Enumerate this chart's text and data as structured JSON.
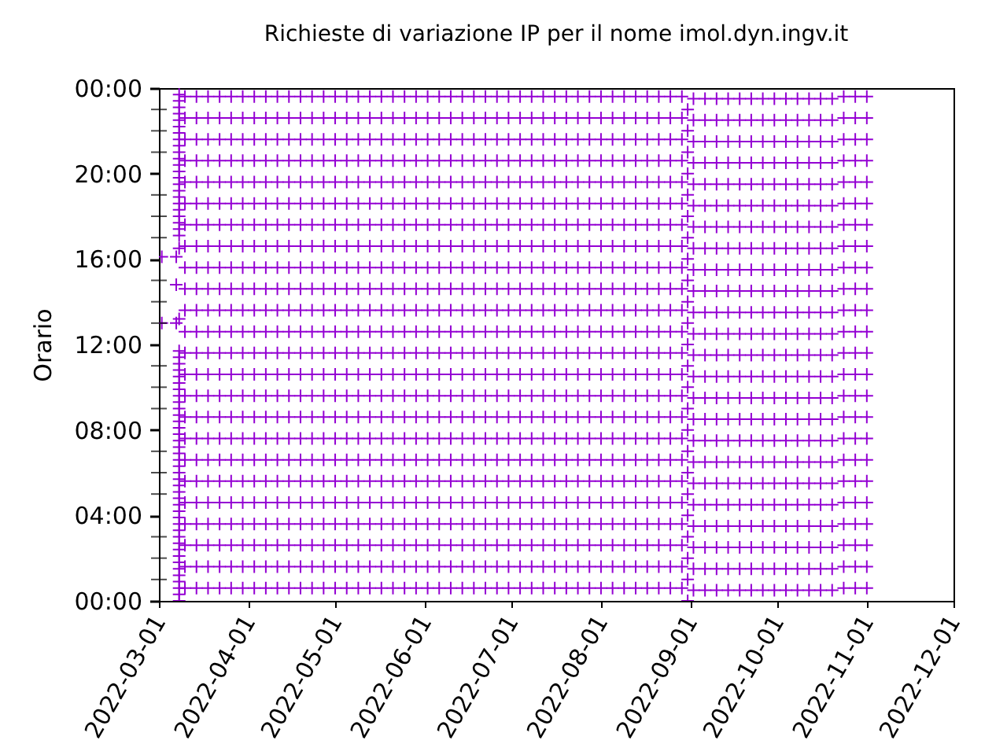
{
  "chart_data": {
    "type": "scatter",
    "title": "Richieste di variazione IP per il nome imol.dyn.ingv.it",
    "ylabel": "Orario",
    "marker": "cross",
    "xlim": [
      "2022-03-01",
      "2022-12-01"
    ],
    "xticks": [
      "2022-03-01",
      "2022-04-01",
      "2022-05-01",
      "2022-06-01",
      "2022-07-01",
      "2022-08-01",
      "2022-09-01",
      "2022-10-01",
      "2022-11-01",
      "2022-12-01"
    ],
    "ylim": [
      0,
      24
    ],
    "yticks": [
      {
        "value": 0,
        "label": "00:00"
      },
      {
        "value": 1,
        "label": null
      },
      {
        "value": 2,
        "label": null
      },
      {
        "value": 3,
        "label": null
      },
      {
        "value": 4,
        "label": "04:00"
      },
      {
        "value": 5,
        "label": null
      },
      {
        "value": 6,
        "label": null
      },
      {
        "value": 7,
        "label": null
      },
      {
        "value": 8,
        "label": "08:00"
      },
      {
        "value": 9,
        "label": null
      },
      {
        "value": 10,
        "label": null
      },
      {
        "value": 11,
        "label": null
      },
      {
        "value": 12,
        "label": "12:00"
      },
      {
        "value": 13,
        "label": null
      },
      {
        "value": 14,
        "label": null
      },
      {
        "value": 15,
        "label": null
      },
      {
        "value": 16,
        "label": "16:00"
      },
      {
        "value": 17,
        "label": null
      },
      {
        "value": 18,
        "label": null
      },
      {
        "value": 19,
        "label": null
      },
      {
        "value": 20,
        "label": "20:00"
      },
      {
        "value": 21,
        "label": null
      },
      {
        "value": 22,
        "label": null
      },
      {
        "value": 23,
        "label": null
      },
      {
        "value": 24,
        "label": "00:00"
      }
    ],
    "x": [
      "2022-03-10",
      "2022-03-14",
      "2022-03-18",
      "2022-03-22",
      "2022-03-26",
      "2022-03-30",
      "2022-04-03",
      "2022-04-07",
      "2022-04-11",
      "2022-04-15",
      "2022-04-19",
      "2022-04-23",
      "2022-04-27",
      "2022-05-01",
      "2022-05-05",
      "2022-05-09",
      "2022-05-13",
      "2022-05-17",
      "2022-05-21",
      "2022-05-25",
      "2022-05-29",
      "2022-06-02",
      "2022-06-06",
      "2022-06-10",
      "2022-06-14",
      "2022-06-18",
      "2022-06-22",
      "2022-06-26",
      "2022-06-30",
      "2022-07-04",
      "2022-07-08",
      "2022-07-12",
      "2022-07-16",
      "2022-07-20",
      "2022-07-24",
      "2022-07-28",
      "2022-08-01",
      "2022-08-05",
      "2022-08-09",
      "2022-08-13",
      "2022-08-17",
      "2022-08-21",
      "2022-08-25",
      "2022-08-29",
      "2022-09-02",
      "2022-09-06",
      "2022-09-10",
      "2022-09-14",
      "2022-09-18",
      "2022-09-22",
      "2022-09-26",
      "2022-09-30",
      "2022-10-04",
      "2022-10-08",
      "2022-10-12",
      "2022-10-16",
      "2022-10-20",
      "2022-10-24",
      "2022-10-28",
      "2022-11-01"
    ],
    "series": [
      {
        "color": "#9400d3",
        "values": [
          0.6,
          0.6,
          0.6,
          0.6,
          0.6,
          0.6,
          0.6,
          0.6,
          0.6,
          0.6,
          0.6,
          0.6,
          0.6,
          0.6,
          0.6,
          0.6,
          0.6,
          0.6,
          0.6,
          0.6,
          0.6,
          0.6,
          0.6,
          0.6,
          0.6,
          0.6,
          0.6,
          0.6,
          0.6,
          0.6,
          0.6,
          0.6,
          0.6,
          0.6,
          0.6,
          0.6,
          0.6,
          0.6,
          0.6,
          0.6,
          0.6,
          0.6,
          0.6,
          0.6,
          0.5,
          0.5,
          0.5,
          0.5,
          0.5,
          0.5,
          0.5,
          0.5,
          0.5,
          0.5,
          0.5,
          0.5,
          0.5,
          0.6,
          0.6,
          0.6
        ]
      },
      {
        "color": "#9400d3",
        "values": [
          1.6,
          1.6,
          1.6,
          1.6,
          1.6,
          1.6,
          1.6,
          1.6,
          1.6,
          1.6,
          1.6,
          1.6,
          1.6,
          1.6,
          1.6,
          1.6,
          1.6,
          1.6,
          1.6,
          1.6,
          1.6,
          1.6,
          1.6,
          1.6,
          1.6,
          1.6,
          1.6,
          1.6,
          1.6,
          1.6,
          1.6,
          1.6,
          1.6,
          1.6,
          1.6,
          1.6,
          1.6,
          1.6,
          1.6,
          1.6,
          1.6,
          1.6,
          1.6,
          1.6,
          1.5,
          1.5,
          1.5,
          1.5,
          1.5,
          1.5,
          1.5,
          1.5,
          1.5,
          1.5,
          1.5,
          1.5,
          1.5,
          1.6,
          1.6,
          1.6
        ]
      },
      {
        "color": "#9400d3",
        "values": [
          2.6,
          2.6,
          2.6,
          2.6,
          2.6,
          2.6,
          2.6,
          2.6,
          2.6,
          2.6,
          2.6,
          2.6,
          2.6,
          2.6,
          2.6,
          2.6,
          2.6,
          2.6,
          2.6,
          2.6,
          2.6,
          2.6,
          2.6,
          2.6,
          2.6,
          2.6,
          2.6,
          2.6,
          2.6,
          2.6,
          2.6,
          2.6,
          2.6,
          2.6,
          2.6,
          2.6,
          2.6,
          2.6,
          2.6,
          2.6,
          2.6,
          2.6,
          2.6,
          2.6,
          2.5,
          2.5,
          2.5,
          2.5,
          2.5,
          2.5,
          2.5,
          2.5,
          2.5,
          2.5,
          2.5,
          2.5,
          2.5,
          2.6,
          2.6,
          2.6
        ]
      },
      {
        "color": "#9400d3",
        "values": [
          3.6,
          3.6,
          3.6,
          3.6,
          3.6,
          3.6,
          3.6,
          3.6,
          3.6,
          3.6,
          3.6,
          3.6,
          3.6,
          3.6,
          3.6,
          3.6,
          3.6,
          3.6,
          3.6,
          3.6,
          3.6,
          3.6,
          3.6,
          3.6,
          3.6,
          3.6,
          3.6,
          3.6,
          3.6,
          3.6,
          3.6,
          3.6,
          3.6,
          3.6,
          3.6,
          3.6,
          3.6,
          3.6,
          3.6,
          3.6,
          3.6,
          3.6,
          3.6,
          3.6,
          3.5,
          3.5,
          3.5,
          3.5,
          3.5,
          3.5,
          3.5,
          3.5,
          3.5,
          3.5,
          3.5,
          3.5,
          3.5,
          3.6,
          3.6,
          3.6
        ]
      },
      {
        "color": "#9400d3",
        "values": [
          4.6,
          4.6,
          4.6,
          4.6,
          4.6,
          4.6,
          4.6,
          4.6,
          4.6,
          4.6,
          4.6,
          4.6,
          4.6,
          4.6,
          4.6,
          4.6,
          4.6,
          4.6,
          4.6,
          4.6,
          4.6,
          4.6,
          4.6,
          4.6,
          4.6,
          4.6,
          4.6,
          4.6,
          4.6,
          4.6,
          4.6,
          4.6,
          4.6,
          4.6,
          4.6,
          4.6,
          4.6,
          4.6,
          4.6,
          4.6,
          4.6,
          4.6,
          4.6,
          4.6,
          4.5,
          4.5,
          4.5,
          4.5,
          4.5,
          4.5,
          4.5,
          4.5,
          4.5,
          4.5,
          4.5,
          4.5,
          4.5,
          4.6,
          4.6,
          4.6
        ]
      },
      {
        "color": "#9400d3",
        "values": [
          5.6,
          5.6,
          5.6,
          5.6,
          5.6,
          5.6,
          5.6,
          5.6,
          5.6,
          5.6,
          5.6,
          5.6,
          5.6,
          5.6,
          5.6,
          5.6,
          5.6,
          5.6,
          5.6,
          5.6,
          5.6,
          5.6,
          5.6,
          5.6,
          5.6,
          5.6,
          5.6,
          5.6,
          5.6,
          5.6,
          5.6,
          5.6,
          5.6,
          5.6,
          5.6,
          5.6,
          5.6,
          5.6,
          5.6,
          5.6,
          5.6,
          5.6,
          5.6,
          5.6,
          5.5,
          5.5,
          5.5,
          5.5,
          5.5,
          5.5,
          5.5,
          5.5,
          5.5,
          5.5,
          5.5,
          5.5,
          5.5,
          5.6,
          5.6,
          5.6
        ]
      },
      {
        "color": "#9400d3",
        "values": [
          6.6,
          6.6,
          6.6,
          6.6,
          6.6,
          6.6,
          6.6,
          6.6,
          6.6,
          6.6,
          6.6,
          6.6,
          6.6,
          6.6,
          6.6,
          6.6,
          6.6,
          6.6,
          6.6,
          6.6,
          6.6,
          6.6,
          6.6,
          6.6,
          6.6,
          6.6,
          6.6,
          6.6,
          6.6,
          6.6,
          6.6,
          6.6,
          6.6,
          6.6,
          6.6,
          6.6,
          6.6,
          6.6,
          6.6,
          6.6,
          6.6,
          6.6,
          6.6,
          6.6,
          6.5,
          6.5,
          6.5,
          6.5,
          6.5,
          6.5,
          6.5,
          6.5,
          6.5,
          6.5,
          6.5,
          6.5,
          6.5,
          6.6,
          6.6,
          6.6
        ]
      },
      {
        "color": "#9400d3",
        "values": [
          7.6,
          7.6,
          7.6,
          7.6,
          7.6,
          7.6,
          7.6,
          7.6,
          7.6,
          7.6,
          7.6,
          7.6,
          7.6,
          7.6,
          7.6,
          7.6,
          7.6,
          7.6,
          7.6,
          7.6,
          7.6,
          7.6,
          7.6,
          7.6,
          7.6,
          7.6,
          7.6,
          7.6,
          7.6,
          7.6,
          7.6,
          7.6,
          7.6,
          7.6,
          7.6,
          7.6,
          7.6,
          7.6,
          7.6,
          7.6,
          7.6,
          7.6,
          7.6,
          7.6,
          7.5,
          7.5,
          7.5,
          7.5,
          7.5,
          7.5,
          7.5,
          7.5,
          7.5,
          7.5,
          7.5,
          7.5,
          7.5,
          7.6,
          7.6,
          7.6
        ]
      },
      {
        "color": "#9400d3",
        "values": [
          8.6,
          8.6,
          8.6,
          8.6,
          8.6,
          8.6,
          8.6,
          8.6,
          8.6,
          8.6,
          8.6,
          8.6,
          8.6,
          8.6,
          8.6,
          8.6,
          8.6,
          8.6,
          8.6,
          8.6,
          8.6,
          8.6,
          8.6,
          8.6,
          8.6,
          8.6,
          8.6,
          8.6,
          8.6,
          8.6,
          8.6,
          8.6,
          8.6,
          8.6,
          8.6,
          8.6,
          8.6,
          8.6,
          8.6,
          8.6,
          8.6,
          8.6,
          8.6,
          8.6,
          8.5,
          8.5,
          8.5,
          8.5,
          8.5,
          8.5,
          8.5,
          8.5,
          8.5,
          8.5,
          8.5,
          8.5,
          8.5,
          8.6,
          8.6,
          8.6
        ]
      },
      {
        "color": "#9400d3",
        "values": [
          9.6,
          9.6,
          9.6,
          9.6,
          9.6,
          9.6,
          9.6,
          9.6,
          9.6,
          9.6,
          9.6,
          9.6,
          9.6,
          9.6,
          9.6,
          9.6,
          9.6,
          9.6,
          9.6,
          9.6,
          9.6,
          9.6,
          9.6,
          9.6,
          9.6,
          9.6,
          9.6,
          9.6,
          9.6,
          9.6,
          9.6,
          9.6,
          9.6,
          9.6,
          9.6,
          9.6,
          9.6,
          9.6,
          9.6,
          9.6,
          9.6,
          9.6,
          9.6,
          9.6,
          9.5,
          9.5,
          9.5,
          9.5,
          9.5,
          9.5,
          9.5,
          9.5,
          9.5,
          9.5,
          9.5,
          9.5,
          9.5,
          9.6,
          9.6,
          9.6
        ]
      },
      {
        "color": "#9400d3",
        "values": [
          10.6,
          10.6,
          10.6,
          10.6,
          10.6,
          10.6,
          10.6,
          10.6,
          10.6,
          10.6,
          10.6,
          10.6,
          10.6,
          10.6,
          10.6,
          10.6,
          10.6,
          10.6,
          10.6,
          10.6,
          10.6,
          10.6,
          10.6,
          10.6,
          10.6,
          10.6,
          10.6,
          10.6,
          10.6,
          10.6,
          10.6,
          10.6,
          10.6,
          10.6,
          10.6,
          10.6,
          10.6,
          10.6,
          10.6,
          10.6,
          10.6,
          10.6,
          10.6,
          10.6,
          10.5,
          10.5,
          10.5,
          10.5,
          10.5,
          10.5,
          10.5,
          10.5,
          10.5,
          10.5,
          10.5,
          10.5,
          10.5,
          10.6,
          10.6,
          10.6
        ]
      },
      {
        "color": "#9400d3",
        "values": [
          11.6,
          11.6,
          11.6,
          11.6,
          11.6,
          11.6,
          11.6,
          11.6,
          11.6,
          11.6,
          11.6,
          11.6,
          11.6,
          11.6,
          11.6,
          11.6,
          11.6,
          11.6,
          11.6,
          11.6,
          11.6,
          11.6,
          11.6,
          11.6,
          11.6,
          11.6,
          11.6,
          11.6,
          11.6,
          11.6,
          11.6,
          11.6,
          11.6,
          11.6,
          11.6,
          11.6,
          11.6,
          11.6,
          11.6,
          11.6,
          11.6,
          11.6,
          11.6,
          11.6,
          11.5,
          11.5,
          11.5,
          11.5,
          11.5,
          11.5,
          11.5,
          11.5,
          11.5,
          11.5,
          11.5,
          11.5,
          11.5,
          11.6,
          11.6,
          11.6
        ]
      },
      {
        "color": "#9400d3",
        "values": [
          12.6,
          12.6,
          12.6,
          12.6,
          12.6,
          12.6,
          12.6,
          12.6,
          12.6,
          12.6,
          12.6,
          12.6,
          12.6,
          12.6,
          12.6,
          12.6,
          12.6,
          12.6,
          12.6,
          12.6,
          12.6,
          12.6,
          12.6,
          12.6,
          12.6,
          12.6,
          12.6,
          12.6,
          12.6,
          12.6,
          12.6,
          12.6,
          12.6,
          12.6,
          12.6,
          12.6,
          12.6,
          12.6,
          12.6,
          12.6,
          12.6,
          12.6,
          12.6,
          12.6,
          12.5,
          12.5,
          12.5,
          12.5,
          12.5,
          12.5,
          12.5,
          12.5,
          12.5,
          12.5,
          12.5,
          12.5,
          12.5,
          12.6,
          12.6,
          12.6
        ]
      },
      {
        "color": "#9400d3",
        "values": [
          13.6,
          13.6,
          13.6,
          13.6,
          13.6,
          13.6,
          13.6,
          13.6,
          13.6,
          13.6,
          13.6,
          13.6,
          13.6,
          13.6,
          13.6,
          13.6,
          13.6,
          13.6,
          13.6,
          13.6,
          13.6,
          13.6,
          13.6,
          13.6,
          13.6,
          13.6,
          13.6,
          13.6,
          13.6,
          13.6,
          13.6,
          13.6,
          13.6,
          13.6,
          13.6,
          13.6,
          13.6,
          13.6,
          13.6,
          13.6,
          13.6,
          13.6,
          13.6,
          13.6,
          13.5,
          13.5,
          13.5,
          13.5,
          13.5,
          13.5,
          13.5,
          13.5,
          13.5,
          13.5,
          13.5,
          13.5,
          13.5,
          13.6,
          13.6,
          13.6
        ]
      },
      {
        "color": "#9400d3",
        "values": [
          14.6,
          14.6,
          14.6,
          14.6,
          14.6,
          14.6,
          14.6,
          14.6,
          14.6,
          14.6,
          14.6,
          14.6,
          14.6,
          14.6,
          14.6,
          14.6,
          14.6,
          14.6,
          14.6,
          14.6,
          14.6,
          14.6,
          14.6,
          14.6,
          14.6,
          14.6,
          14.6,
          14.6,
          14.6,
          14.6,
          14.6,
          14.6,
          14.6,
          14.6,
          14.6,
          14.6,
          14.6,
          14.6,
          14.6,
          14.6,
          14.6,
          14.6,
          14.6,
          14.6,
          14.5,
          14.5,
          14.5,
          14.5,
          14.5,
          14.5,
          14.5,
          14.5,
          14.5,
          14.5,
          14.5,
          14.5,
          14.5,
          14.6,
          14.6,
          14.6
        ]
      },
      {
        "color": "#9400d3",
        "values": [
          15.6,
          15.6,
          15.6,
          15.6,
          15.6,
          15.6,
          15.6,
          15.6,
          15.6,
          15.6,
          15.6,
          15.6,
          15.6,
          15.6,
          15.6,
          15.6,
          15.6,
          15.6,
          15.6,
          15.6,
          15.6,
          15.6,
          15.6,
          15.6,
          15.6,
          15.6,
          15.6,
          15.6,
          15.6,
          15.6,
          15.6,
          15.6,
          15.6,
          15.6,
          15.6,
          15.6,
          15.6,
          15.6,
          15.6,
          15.6,
          15.6,
          15.6,
          15.6,
          15.6,
          15.5,
          15.5,
          15.5,
          15.5,
          15.5,
          15.5,
          15.5,
          15.5,
          15.5,
          15.5,
          15.5,
          15.5,
          15.5,
          15.6,
          15.6,
          15.6
        ]
      },
      {
        "color": "#9400d3",
        "values": [
          16.6,
          16.6,
          16.6,
          16.6,
          16.6,
          16.6,
          16.6,
          16.6,
          16.6,
          16.6,
          16.6,
          16.6,
          16.6,
          16.6,
          16.6,
          16.6,
          16.6,
          16.6,
          16.6,
          16.6,
          16.6,
          16.6,
          16.6,
          16.6,
          16.6,
          16.6,
          16.6,
          16.6,
          16.6,
          16.6,
          16.6,
          16.6,
          16.6,
          16.6,
          16.6,
          16.6,
          16.6,
          16.6,
          16.6,
          16.6,
          16.6,
          16.6,
          16.6,
          16.6,
          16.5,
          16.5,
          16.5,
          16.5,
          16.5,
          16.5,
          16.5,
          16.5,
          16.5,
          16.5,
          16.5,
          16.5,
          16.5,
          16.6,
          16.6,
          16.6
        ]
      },
      {
        "color": "#9400d3",
        "values": [
          17.6,
          17.6,
          17.6,
          17.6,
          17.6,
          17.6,
          17.6,
          17.6,
          17.6,
          17.6,
          17.6,
          17.6,
          17.6,
          17.6,
          17.6,
          17.6,
          17.6,
          17.6,
          17.6,
          17.6,
          17.6,
          17.6,
          17.6,
          17.6,
          17.6,
          17.6,
          17.6,
          17.6,
          17.6,
          17.6,
          17.6,
          17.6,
          17.6,
          17.6,
          17.6,
          17.6,
          17.6,
          17.6,
          17.6,
          17.6,
          17.6,
          17.6,
          17.6,
          17.6,
          17.5,
          17.5,
          17.5,
          17.5,
          17.5,
          17.5,
          17.5,
          17.5,
          17.5,
          17.5,
          17.5,
          17.5,
          17.5,
          17.6,
          17.6,
          17.6
        ]
      },
      {
        "color": "#9400d3",
        "values": [
          18.6,
          18.6,
          18.6,
          18.6,
          18.6,
          18.6,
          18.6,
          18.6,
          18.6,
          18.6,
          18.6,
          18.6,
          18.6,
          18.6,
          18.6,
          18.6,
          18.6,
          18.6,
          18.6,
          18.6,
          18.6,
          18.6,
          18.6,
          18.6,
          18.6,
          18.6,
          18.6,
          18.6,
          18.6,
          18.6,
          18.6,
          18.6,
          18.6,
          18.6,
          18.6,
          18.6,
          18.6,
          18.6,
          18.6,
          18.6,
          18.6,
          18.6,
          18.6,
          18.6,
          18.5,
          18.5,
          18.5,
          18.5,
          18.5,
          18.5,
          18.5,
          18.5,
          18.5,
          18.5,
          18.5,
          18.5,
          18.5,
          18.6,
          18.6,
          18.6
        ]
      },
      {
        "color": "#9400d3",
        "values": [
          19.6,
          19.6,
          19.6,
          19.6,
          19.6,
          19.6,
          19.6,
          19.6,
          19.6,
          19.6,
          19.6,
          19.6,
          19.6,
          19.6,
          19.6,
          19.6,
          19.6,
          19.6,
          19.6,
          19.6,
          19.6,
          19.6,
          19.6,
          19.6,
          19.6,
          19.6,
          19.6,
          19.6,
          19.6,
          19.6,
          19.6,
          19.6,
          19.6,
          19.6,
          19.6,
          19.6,
          19.6,
          19.6,
          19.6,
          19.6,
          19.6,
          19.6,
          19.6,
          19.6,
          19.5,
          19.5,
          19.5,
          19.5,
          19.5,
          19.5,
          19.5,
          19.5,
          19.5,
          19.5,
          19.5,
          19.5,
          19.5,
          19.6,
          19.6,
          19.6
        ]
      },
      {
        "color": "#9400d3",
        "values": [
          20.6,
          20.6,
          20.6,
          20.6,
          20.6,
          20.6,
          20.6,
          20.6,
          20.6,
          20.6,
          20.6,
          20.6,
          20.6,
          20.6,
          20.6,
          20.6,
          20.6,
          20.6,
          20.6,
          20.6,
          20.6,
          20.6,
          20.6,
          20.6,
          20.6,
          20.6,
          20.6,
          20.6,
          20.6,
          20.6,
          20.6,
          20.6,
          20.6,
          20.6,
          20.6,
          20.6,
          20.6,
          20.6,
          20.6,
          20.6,
          20.6,
          20.6,
          20.6,
          20.6,
          20.5,
          20.5,
          20.5,
          20.5,
          20.5,
          20.5,
          20.5,
          20.5,
          20.5,
          20.5,
          20.5,
          20.5,
          20.5,
          20.6,
          20.6,
          20.6
        ]
      },
      {
        "color": "#9400d3",
        "values": [
          21.6,
          21.6,
          21.6,
          21.6,
          21.6,
          21.6,
          21.6,
          21.6,
          21.6,
          21.6,
          21.6,
          21.6,
          21.6,
          21.6,
          21.6,
          21.6,
          21.6,
          21.6,
          21.6,
          21.6,
          21.6,
          21.6,
          21.6,
          21.6,
          21.6,
          21.6,
          21.6,
          21.6,
          21.6,
          21.6,
          21.6,
          21.6,
          21.6,
          21.6,
          21.6,
          21.6,
          21.6,
          21.6,
          21.6,
          21.6,
          21.6,
          21.6,
          21.6,
          21.6,
          21.5,
          21.5,
          21.5,
          21.5,
          21.5,
          21.5,
          21.5,
          21.5,
          21.5,
          21.5,
          21.5,
          21.5,
          21.5,
          21.6,
          21.6,
          21.6
        ]
      },
      {
        "color": "#9400d3",
        "values": [
          22.6,
          22.6,
          22.6,
          22.6,
          22.6,
          22.6,
          22.6,
          22.6,
          22.6,
          22.6,
          22.6,
          22.6,
          22.6,
          22.6,
          22.6,
          22.6,
          22.6,
          22.6,
          22.6,
          22.6,
          22.6,
          22.6,
          22.6,
          22.6,
          22.6,
          22.6,
          22.6,
          22.6,
          22.6,
          22.6,
          22.6,
          22.6,
          22.6,
          22.6,
          22.6,
          22.6,
          22.6,
          22.6,
          22.6,
          22.6,
          22.6,
          22.6,
          22.6,
          22.6,
          22.5,
          22.5,
          22.5,
          22.5,
          22.5,
          22.5,
          22.5,
          22.5,
          22.5,
          22.5,
          22.5,
          22.5,
          22.5,
          22.6,
          22.6,
          22.6
        ]
      },
      {
        "color": "#9400d3",
        "values": [
          23.6,
          23.6,
          23.6,
          23.6,
          23.6,
          23.6,
          23.6,
          23.6,
          23.6,
          23.6,
          23.6,
          23.6,
          23.6,
          23.6,
          23.6,
          23.6,
          23.6,
          23.6,
          23.6,
          23.6,
          23.6,
          23.6,
          23.6,
          23.6,
          23.6,
          23.6,
          23.6,
          23.6,
          23.6,
          23.6,
          23.6,
          23.6,
          23.6,
          23.6,
          23.6,
          23.6,
          23.6,
          23.6,
          23.6,
          23.6,
          23.6,
          23.6,
          23.6,
          23.6,
          23.5,
          23.5,
          23.5,
          23.5,
          23.5,
          23.5,
          23.5,
          23.5,
          23.5,
          23.5,
          23.5,
          23.5,
          23.5,
          23.6,
          23.6,
          23.6
        ]
      },
      {
        "color": "#9400d3",
        "x": [
          "2022-03-08",
          "2022-03-08",
          "2022-03-08",
          "2022-03-08",
          "2022-03-08",
          "2022-03-08",
          "2022-03-08",
          "2022-03-08",
          "2022-03-08",
          "2022-03-08",
          "2022-03-08",
          "2022-03-08",
          "2022-03-08",
          "2022-03-08",
          "2022-03-08",
          "2022-03-08",
          "2022-03-08",
          "2022-03-08",
          "2022-03-08",
          "2022-03-08",
          "2022-03-08",
          "2022-03-08",
          "2022-03-08",
          "2022-03-08",
          "2022-03-08",
          "2022-03-08",
          "2022-03-08",
          "2022-03-08",
          "2022-03-08",
          "2022-03-08",
          "2022-03-08",
          "2022-03-08",
          "2022-03-08",
          "2022-03-08",
          "2022-03-08",
          "2022-03-08",
          "2022-03-08",
          "2022-03-08",
          "2022-03-08",
          "2022-03-08",
          "2022-03-08",
          "2022-03-08",
          "2022-03-08",
          "2022-03-08",
          "2022-03-08",
          "2022-03-08",
          "2022-03-08",
          "2022-03-08",
          "2022-03-08",
          "2022-03-08",
          "2022-03-08",
          "2022-03-08",
          "2022-03-08",
          "2022-03-08",
          "2022-03-08",
          "2022-03-08",
          "2022-03-08",
          "2022-03-08",
          "2022-03-08",
          "2022-03-08",
          "2022-03-08",
          "2022-03-08",
          "2022-03-08",
          "2022-03-02",
          "2022-03-07",
          "2022-03-07",
          "2022-03-08",
          "2022-03-02",
          "2022-03-07",
          "2022-03-08",
          "2022-08-31",
          "2022-08-31",
          "2022-08-31",
          "2022-08-31",
          "2022-08-31",
          "2022-08-31",
          "2022-08-31",
          "2022-08-31",
          "2022-08-31",
          "2022-08-31",
          "2022-08-31",
          "2022-08-31",
          "2022-08-31",
          "2022-08-31",
          "2022-08-31",
          "2022-08-31",
          "2022-08-31",
          "2022-08-31",
          "2022-08-31",
          "2022-08-31",
          "2022-08-31",
          "2022-08-31",
          "2022-08-31",
          "2022-08-31"
        ],
        "values": [
          0,
          0.3,
          0.6,
          0.9,
          1.2,
          1.5,
          1.8,
          2.1,
          2.4,
          2.7,
          3,
          3.3,
          3.6,
          3.9,
          4.2,
          4.5,
          4.8,
          5.1,
          5.4,
          5.7,
          6,
          6.3,
          6.6,
          6.9,
          7.2,
          7.5,
          7.8,
          8.1,
          8.4,
          8.7,
          9,
          9.3,
          9.6,
          9.9,
          10.2,
          10.5,
          10.8,
          11.1,
          11.4,
          11.7,
          17.1,
          17.4,
          17.7,
          18,
          18.3,
          18.6,
          18.9,
          19.2,
          19.5,
          19.8,
          20.1,
          20.4,
          20.7,
          21,
          21.3,
          21.6,
          21.9,
          22.2,
          22.5,
          22.8,
          23.1,
          23.4,
          23.7,
          16.1,
          16.1,
          14.8,
          16.5,
          13,
          13,
          13.2,
          0,
          1,
          2,
          3,
          4,
          5,
          6,
          7,
          8,
          9,
          10,
          11,
          12,
          13,
          14,
          15,
          16,
          17,
          18,
          19,
          20,
          21,
          22,
          23
        ]
      }
    ]
  }
}
